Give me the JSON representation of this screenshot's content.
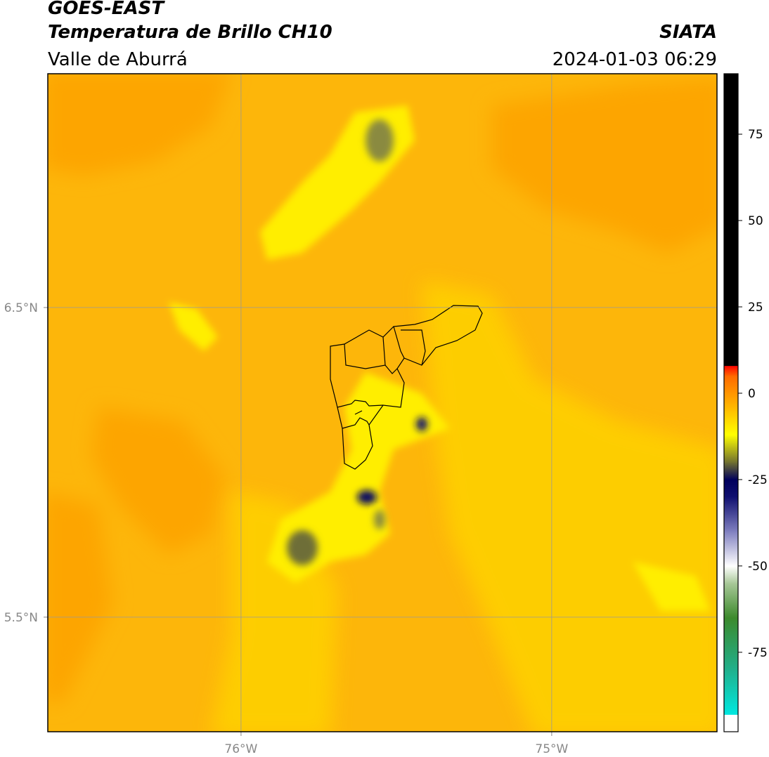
{
  "chart_data": {
    "type": "map",
    "title": "GOES-EAST",
    "subtitle": "Temperatura de Brillo CH10",
    "source": "SIATA",
    "region": "Valle de Aburrá",
    "timestamp": "2024-01-03 06:29",
    "xlim": [
      -76.622,
      -74.468
    ],
    "xticks": [
      {
        "value": -76,
        "label": "76°W"
      },
      {
        "value": -75,
        "label": "75°W"
      }
    ],
    "ylim": [
      5.13,
      7.255
    ],
    "yticks": [
      {
        "value": 5.5,
        "label": "5.5°N"
      },
      {
        "value": 6.5,
        "label": "6.5°N"
      }
    ],
    "grid": true,
    "colorbar": {
      "lim": [
        -98,
        92.5
      ],
      "ticks": [
        -75,
        -50,
        -25,
        0,
        25,
        50,
        75
      ],
      "stops": [
        {
          "value": -98,
          "color": "#ffffff"
        },
        {
          "value": -93,
          "color": "#ffffff"
        },
        {
          "value": -93,
          "color": "#00e8e0"
        },
        {
          "value": -80,
          "color": "#20b08c"
        },
        {
          "value": -65,
          "color": "#3c8a2c"
        },
        {
          "value": -55,
          "color": "#a8c898"
        },
        {
          "value": -50,
          "color": "#ffffff"
        },
        {
          "value": -40,
          "color": "#8080c0"
        },
        {
          "value": -30,
          "color": "#101070"
        },
        {
          "value": -25,
          "color": "#00005c"
        },
        {
          "value": -20,
          "color": "#707030"
        },
        {
          "value": -12,
          "color": "#ffff00"
        },
        {
          "value": -5,
          "color": "#ffc000"
        },
        {
          "value": 5,
          "color": "#ff6a00"
        },
        {
          "value": 8,
          "color": "#ff0000"
        },
        {
          "value": 8,
          "color": "#000000"
        },
        {
          "value": 92.5,
          "color": "#000000"
        }
      ]
    }
  }
}
